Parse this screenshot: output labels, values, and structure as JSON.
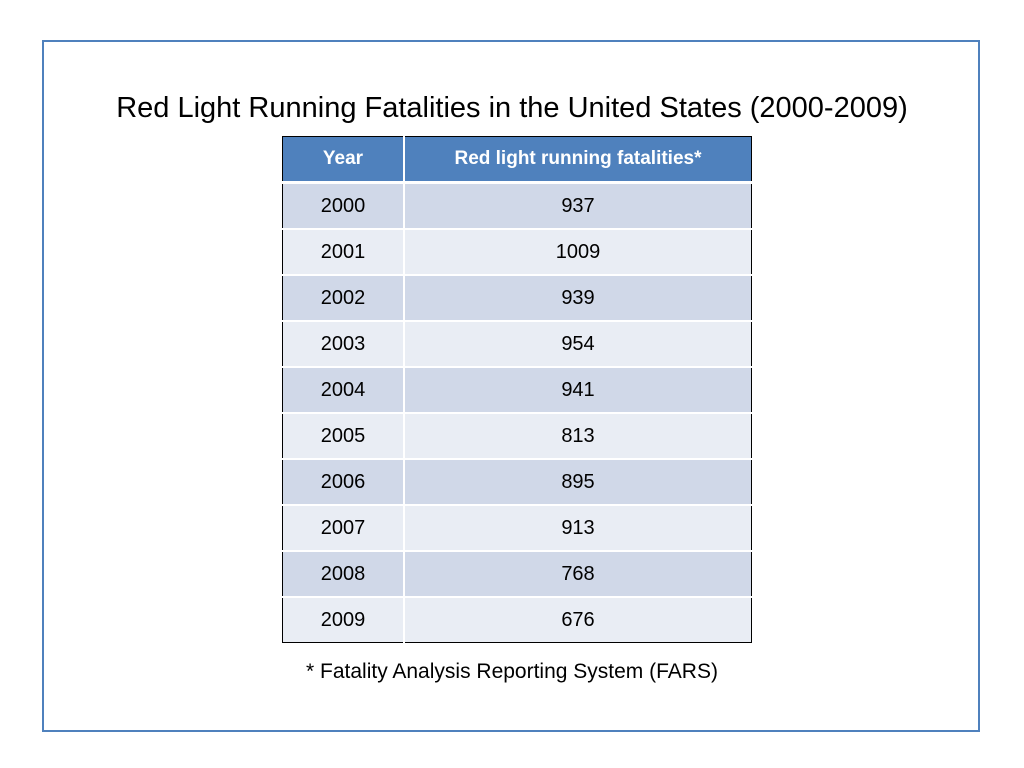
{
  "title": "Red Light Running Fatalities in the United States (2000-2009)",
  "table": {
    "headers": [
      "Year",
      "Red light running fatalities*"
    ],
    "rows": [
      [
        "2000",
        "937"
      ],
      [
        "2001",
        "1009"
      ],
      [
        "2002",
        "939"
      ],
      [
        "2003",
        "954"
      ],
      [
        "2004",
        "941"
      ],
      [
        "2005",
        "813"
      ],
      [
        "2006",
        "895"
      ],
      [
        "2007",
        "913"
      ],
      [
        "2008",
        "768"
      ],
      [
        "2009",
        "676"
      ]
    ]
  },
  "footnote": "* Fatality Analysis Reporting System (FARS)",
  "colors": {
    "frame_border": "#4f81bd",
    "header_bg": "#4f81bd",
    "row_odd_bg": "#d0d8e8",
    "row_even_bg": "#e9edf4"
  }
}
